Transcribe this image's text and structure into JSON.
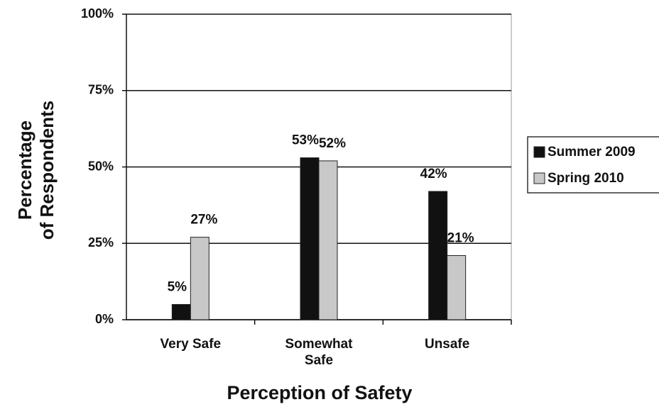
{
  "chart_data": {
    "type": "bar",
    "x_label": "Perception of Safety",
    "y_label": "Percentage\nof Respondents",
    "categories": [
      "Very Safe",
      "Somewhat\nSafe",
      "Unsafe"
    ],
    "series": [
      {
        "name": "Summer 2009",
        "color": "#111111",
        "values": [
          5,
          53,
          42
        ],
        "value_labels": [
          "5%",
          "53%",
          "42%"
        ]
      },
      {
        "name": "Spring 2010",
        "color": "#c8c8c8",
        "values": [
          27,
          52,
          21
        ],
        "value_labels": [
          "27%",
          "52%",
          "21%"
        ]
      }
    ],
    "ylim": [
      0,
      100
    ],
    "yticks": [
      {
        "value": 0,
        "label": "0%"
      },
      {
        "value": 25,
        "label": "25%"
      },
      {
        "value": 50,
        "label": "50%"
      },
      {
        "value": 75,
        "label": "75%"
      },
      {
        "value": 100,
        "label": "100%"
      }
    ],
    "grid": true,
    "legend": "right"
  }
}
